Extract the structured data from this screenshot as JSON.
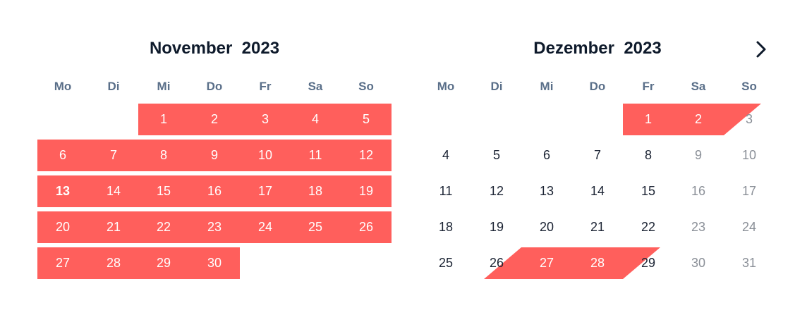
{
  "months": [
    {
      "month": "November",
      "year": "2023",
      "weekdays": [
        "Mo",
        "Di",
        "Mi",
        "Do",
        "Fr",
        "Sa",
        "So"
      ],
      "rows": [
        [
          "",
          "",
          "1",
          "2",
          "3",
          "4",
          "5"
        ],
        [
          "6",
          "7",
          "8",
          "9",
          "10",
          "11",
          "12"
        ],
        [
          "13",
          "14",
          "15",
          "16",
          "17",
          "18",
          "19"
        ],
        [
          "20",
          "21",
          "22",
          "23",
          "24",
          "25",
          "26"
        ],
        [
          "27",
          "28",
          "29",
          "30",
          "",
          "",
          ""
        ]
      ]
    },
    {
      "month": "Dezember",
      "year": "2023",
      "weekdays": [
        "Mo",
        "Di",
        "Mi",
        "Do",
        "Fr",
        "Sa",
        "So"
      ],
      "rows": [
        [
          "",
          "",
          "",
          "",
          "1",
          "2",
          "3"
        ],
        [
          "4",
          "5",
          "6",
          "7",
          "8",
          "9",
          "10"
        ],
        [
          "11",
          "12",
          "13",
          "14",
          "15",
          "16",
          "17"
        ],
        [
          "18",
          "19",
          "20",
          "21",
          "22",
          "23",
          "24"
        ],
        [
          "25",
          "26",
          "27",
          "28",
          "29",
          "30",
          "31"
        ]
      ]
    }
  ],
  "today": "13",
  "colors": {
    "booked": "#ff5f5c",
    "text": "#1b2333",
    "weekday": "#5a6f89",
    "weekend_text": "#8a8f97"
  },
  "next_icon": "chevron-right-icon"
}
